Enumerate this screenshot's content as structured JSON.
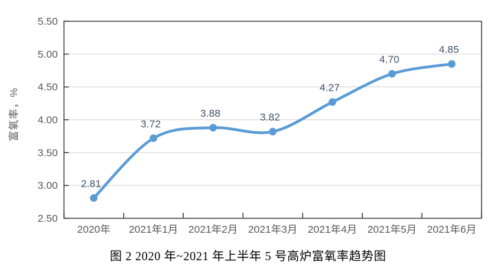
{
  "caption": "图 2  2020 年~2021 年上半年 5 号高炉富氧率趋势图",
  "chart_data": {
    "type": "line",
    "smooth": true,
    "categories": [
      "2020年",
      "2021年1月",
      "2021年2月",
      "2021年3月",
      "2021年4月",
      "2021年5月",
      "2021年6月"
    ],
    "values": [
      2.81,
      3.72,
      3.88,
      3.82,
      4.27,
      4.7,
      4.85
    ],
    "point_labels": [
      "2.81",
      "3.72",
      "3.88",
      "3.82",
      "4.27",
      "4.70",
      "4.85"
    ],
    "title": "",
    "xlabel": "",
    "ylabel": "富氧率，%",
    "ylim": [
      2.5,
      5.5
    ],
    "y_tick_step": 0.5,
    "y_tick_labels": [
      "2.50",
      "3.00",
      "3.50",
      "4.00",
      "4.50",
      "5.00",
      "5.50"
    ],
    "grid": true,
    "legend": "none",
    "colors": {
      "line": "#5B9BD5",
      "marker": "#5B9BD5",
      "gridline": "#D6D6D6",
      "plot_border": "#333333",
      "tick_label": "#595959",
      "data_label": "#44546A",
      "axis_title": "#595959"
    }
  }
}
